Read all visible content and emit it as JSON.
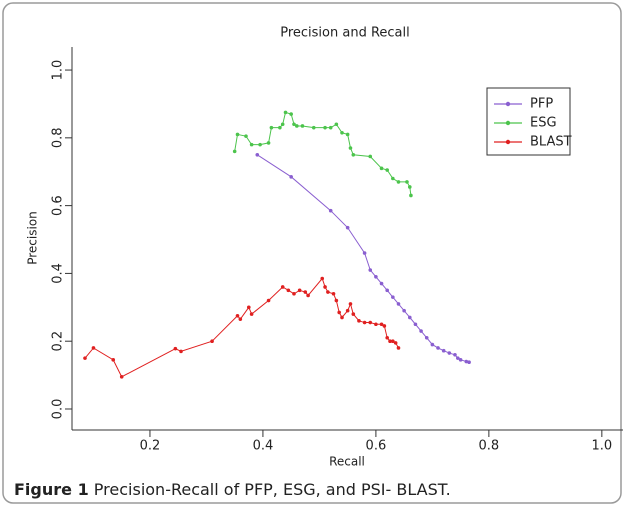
{
  "chart_data": {
    "type": "line",
    "title": "Precision and Recall",
    "x_label": "Recall",
    "y_label": "Precision",
    "xlim": [
      0.062,
      1.041
    ],
    "ylim": [
      -0.062,
      1.068
    ],
    "xticks": [
      0.2,
      0.4,
      0.6,
      0.8,
      {
        "value": 1,
        "label": "1.0"
      }
    ],
    "yticks": [
      {
        "value": 0,
        "label": "0.0"
      },
      0.2,
      0.4,
      0.6,
      0.8,
      {
        "value": 1,
        "label": "1.0"
      }
    ],
    "legend_position": "top-right",
    "series": [
      {
        "name": "PFP",
        "color": "#8a5fd0",
        "x": [
          0.39,
          0.45,
          0.52,
          0.55,
          0.58,
          0.59,
          0.6,
          0.61,
          0.62,
          0.63,
          0.64,
          0.65,
          0.66,
          0.67,
          0.68,
          0.69,
          0.7,
          0.71,
          0.72,
          0.73,
          0.74,
          0.745,
          0.75,
          0.76,
          0.765
        ],
        "values": [
          0.75,
          0.685,
          0.585,
          0.535,
          0.46,
          0.41,
          0.39,
          0.37,
          0.35,
          0.33,
          0.31,
          0.29,
          0.27,
          0.25,
          0.23,
          0.21,
          0.19,
          0.18,
          0.172,
          0.165,
          0.16,
          0.15,
          0.145,
          0.14,
          0.138
        ]
      },
      {
        "name": "ESG",
        "color": "#4cc44c",
        "x": [
          0.35,
          0.355,
          0.37,
          0.38,
          0.395,
          0.41,
          0.415,
          0.43,
          0.435,
          0.44,
          0.45,
          0.455,
          0.46,
          0.47,
          0.49,
          0.51,
          0.52,
          0.53,
          0.54,
          0.55,
          0.555,
          0.56,
          0.59,
          0.61,
          0.62,
          0.63,
          0.64,
          0.655,
          0.66,
          0.662
        ],
        "values": [
          0.76,
          0.81,
          0.805,
          0.78,
          0.78,
          0.785,
          0.83,
          0.83,
          0.84,
          0.875,
          0.87,
          0.84,
          0.835,
          0.835,
          0.83,
          0.83,
          0.83,
          0.84,
          0.815,
          0.81,
          0.77,
          0.75,
          0.745,
          0.71,
          0.705,
          0.68,
          0.67,
          0.67,
          0.655,
          0.63
        ]
      },
      {
        "name": "BLAST",
        "color": "#e02020",
        "x": [
          0.085,
          0.1,
          0.135,
          0.15,
          0.245,
          0.255,
          0.31,
          0.355,
          0.36,
          0.375,
          0.38,
          0.41,
          0.435,
          0.445,
          0.455,
          0.465,
          0.475,
          0.48,
          0.505,
          0.51,
          0.515,
          0.525,
          0.53,
          0.535,
          0.54,
          0.55,
          0.555,
          0.56,
          0.57,
          0.58,
          0.59,
          0.6,
          0.61,
          0.615,
          0.62,
          0.625,
          0.63,
          0.635,
          0.64
        ],
        "values": [
          0.15,
          0.18,
          0.145,
          0.095,
          0.178,
          0.17,
          0.2,
          0.275,
          0.265,
          0.3,
          0.28,
          0.32,
          0.36,
          0.35,
          0.34,
          0.35,
          0.345,
          0.335,
          0.385,
          0.36,
          0.345,
          0.34,
          0.32,
          0.285,
          0.27,
          0.29,
          0.31,
          0.28,
          0.26,
          0.255,
          0.255,
          0.25,
          0.25,
          0.245,
          0.21,
          0.2,
          0.2,
          0.195,
          0.18
        ]
      }
    ]
  },
  "caption": {
    "label": "Figure 1",
    "text": "Precision-Recall of PFP, ESG, and PSI- BLAST."
  }
}
